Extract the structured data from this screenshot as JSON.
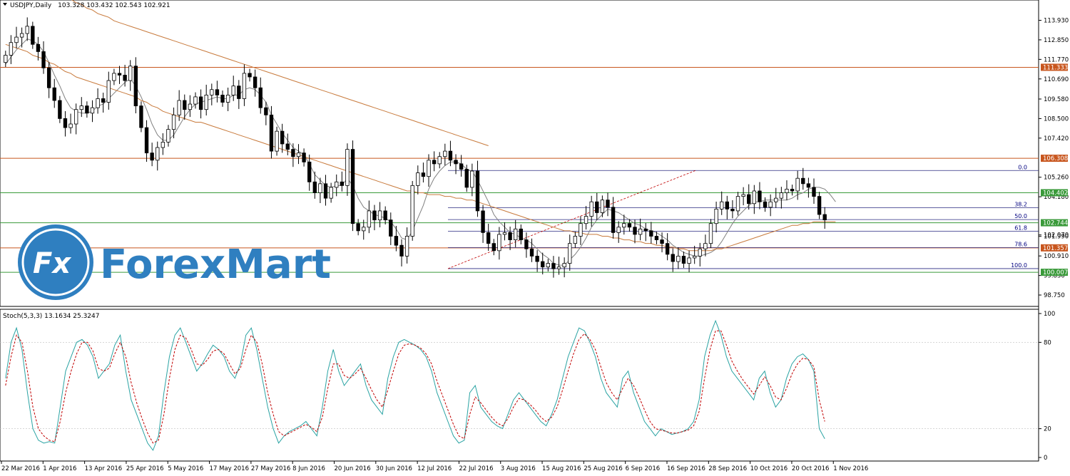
{
  "chart_data": [
    {
      "type": "candlestick",
      "title": "USDJPY,Daily",
      "ohlc_readout": "103.328 103.432 102.543 102.921",
      "ylim": [
        98.2,
        114.5
      ],
      "y_ticks": [
        "113.930",
        "112.850",
        "111.770",
        "110.690",
        "109.580",
        "108.500",
        "107.420",
        "105.260",
        "104.180",
        "102.070",
        "101.990",
        "100.910",
        "99.830",
        "98.750"
      ],
      "x_ticks": [
        "22 Mar 2016",
        "1 Apr 2016",
        "13 Apr 2016",
        "25 Apr 2016",
        "5 May 2016",
        "17 May 2016",
        "27 May 2016",
        "8 Jun 2016",
        "20 Jun 2016",
        "30 Jun 2016",
        "12 Jul 2016",
        "22 Jul 2016",
        "3 Aug 2016",
        "15 Aug 2016",
        "25 Aug 2016",
        "6 Sep 2016",
        "16 Sep 2016",
        "28 Sep 2016",
        "10 Oct 2016",
        "20 Oct 2016",
        "1 Nov 2016"
      ],
      "closes": [
        112.0,
        112.7,
        113.0,
        113.2,
        113.6,
        112.6,
        112.2,
        111.3,
        110.2,
        109.5,
        108.5,
        108.0,
        108.2,
        109.0,
        109.2,
        108.8,
        109.1,
        109.6,
        109.4,
        110.6,
        111.0,
        110.9,
        110.6,
        111.4,
        109.2,
        108.0,
        106.6,
        106.2,
        106.9,
        107.2,
        107.9,
        108.7,
        109.5,
        109.0,
        109.3,
        109.7,
        109.0,
        109.8,
        110.1,
        109.8,
        109.4,
        109.8,
        110.3,
        109.6,
        111.0,
        110.8,
        110.2,
        109.1,
        108.7,
        106.7,
        107.8,
        107.1,
        106.8,
        106.4,
        106.6,
        106.1,
        105.0,
        104.4,
        104.9,
        104.1,
        104.7,
        105.0,
        104.8,
        106.8,
        102.7,
        102.3,
        102.5,
        103.4,
        102.9,
        103.4,
        102.9,
        102.0,
        101.5,
        100.9,
        102.0,
        104.8,
        105.5,
        105.3,
        106.2,
        106.0,
        106.4,
        106.7,
        106.2,
        106.0,
        105.7,
        104.7,
        105.6,
        103.4,
        102.2,
        101.6,
        101.2,
        102.1,
        102.2,
        101.8,
        102.4,
        101.8,
        101.3,
        100.9,
        100.6,
        100.3,
        100.5,
        100.2,
        100.3,
        100.5,
        101.6,
        102.0,
        102.7,
        103.1,
        103.9,
        103.3,
        104.0,
        103.6,
        102.2,
        102.5,
        102.7,
        102.5,
        102.1,
        102.4,
        102.3,
        102.0,
        101.8,
        101.6,
        101.0,
        100.6,
        100.9,
        100.5,
        100.8,
        100.9,
        101.3,
        101.6,
        102.7,
        103.5,
        103.9,
        103.5,
        103.4,
        104.2,
        104.3,
        103.8,
        104.5,
        103.9,
        103.6,
        103.9,
        104.1,
        104.4,
        104.6,
        104.5,
        105.2,
        104.9,
        104.7,
        104.2,
        103.2,
        102.9
      ],
      "moving_averages": [
        {
          "color": "#808080",
          "values": [
            111.5,
            111.9,
            112.3,
            112.6,
            112.9,
            112.8,
            112.6,
            112.2,
            111.6,
            110.9,
            110.3,
            109.6,
            109.1,
            108.9,
            108.8,
            108.8,
            108.9,
            109.2,
            109.3,
            109.6,
            109.9,
            110.2,
            110.5,
            110.7,
            110.3,
            109.7,
            109.0,
            108.2,
            107.6,
            107.3,
            107.3,
            107.6,
            108.1,
            108.6,
            109.0,
            109.3,
            109.4,
            109.5,
            109.6,
            109.7,
            109.6,
            109.6,
            109.8,
            109.8,
            110.1,
            110.2,
            110.1,
            109.8,
            109.4,
            108.7,
            108.2,
            107.7,
            107.3,
            106.9,
            106.7,
            106.5,
            106.0,
            105.4,
            105.1,
            104.8,
            104.7,
            104.8,
            104.8,
            105.2,
            104.8,
            104.1,
            103.6,
            103.4,
            103.2,
            103.1,
            103.0,
            102.8,
            102.4,
            101.9,
            101.8,
            102.3,
            103.0,
            103.7,
            104.6,
            105.2,
            105.6,
            105.9,
            106.1,
            106.1,
            106.0,
            105.7,
            105.6,
            105.1,
            104.5,
            103.9,
            103.2,
            102.8,
            102.5,
            102.2,
            102.1,
            101.9,
            101.8,
            101.6,
            101.3,
            101.0,
            100.8,
            100.5,
            100.4,
            100.4,
            100.7,
            101.0,
            101.4,
            101.9,
            102.5,
            102.9,
            103.2,
            103.5,
            103.4,
            103.3,
            103.1,
            102.9,
            102.7,
            102.6,
            102.4,
            102.3,
            102.2,
            102.0,
            101.8,
            101.5,
            101.3,
            101.1,
            101.0,
            100.9,
            100.9,
            101.0,
            101.1,
            101.3,
            101.7,
            102.2,
            102.7,
            103.1,
            103.4,
            103.7,
            103.9,
            103.9,
            104.0,
            104.0,
            104.0,
            104.0,
            104.0,
            104.1,
            104.3,
            104.4,
            104.6,
            104.7,
            104.7,
            104.6,
            104.3,
            103.9
          ]
        },
        {
          "color": "#c87a3c",
          "values": [
            112.6,
            112.5,
            112.4,
            112.3,
            112.2,
            112.0,
            111.9,
            111.8,
            111.6,
            111.5,
            111.3,
            111.1,
            111.0,
            110.8,
            110.7,
            110.6,
            110.5,
            110.4,
            110.3,
            110.2,
            110.1,
            110.0,
            109.9,
            109.8,
            109.7,
            109.5,
            109.4,
            109.2,
            109.1,
            108.9,
            108.8,
            108.7,
            108.6,
            108.5,
            108.4,
            108.3,
            108.3,
            108.2,
            108.1,
            108.0,
            107.9,
            107.8,
            107.7,
            107.6,
            107.5,
            107.4,
            107.3,
            107.2,
            107.1,
            107.0,
            106.9,
            106.8,
            106.7,
            106.6,
            106.5,
            106.4,
            106.3,
            106.2,
            106.1,
            106.0,
            105.9,
            105.8,
            105.7,
            105.6,
            105.5,
            105.4,
            105.3,
            105.2,
            105.1,
            105.0,
            104.9,
            104.8,
            104.7,
            104.6,
            104.5,
            104.5,
            104.4,
            104.4,
            104.3,
            104.3,
            104.3,
            104.2,
            104.2,
            104.1,
            104.1,
            104.0,
            104.0,
            103.9,
            103.8,
            103.7,
            103.6,
            103.5,
            103.4,
            103.3,
            103.2,
            103.1,
            103.0,
            102.9,
            102.8,
            102.7,
            102.6,
            102.5,
            102.4,
            102.3,
            102.3,
            102.2,
            102.2,
            102.1,
            102.1,
            102.1,
            102.0,
            102.0,
            101.9,
            101.9,
            101.8,
            101.8,
            101.7,
            101.7,
            101.6,
            101.6,
            101.5,
            101.5,
            101.4,
            101.4,
            101.3,
            101.3,
            101.2,
            101.2,
            101.2,
            101.2,
            101.2,
            101.3,
            101.3,
            101.4,
            101.5,
            101.6,
            101.7,
            101.8,
            101.9,
            102.0,
            102.1,
            102.2,
            102.3,
            102.4,
            102.5,
            102.6,
            102.6,
            102.7,
            102.7,
            102.8,
            102.8,
            102.8,
            102.8,
            102.8
          ]
        },
        {
          "color": "#c87a3c",
          "values": [
            116.9,
            116.7,
            116.6,
            116.4,
            116.3,
            116.1,
            116.0,
            115.8,
            115.7,
            115.5,
            115.4,
            115.2,
            115.1,
            114.9,
            114.8,
            114.6,
            114.5,
            114.3,
            114.2,
            114.1,
            113.9,
            113.8,
            113.7,
            113.6,
            113.5,
            113.4,
            113.3,
            113.2,
            113.1,
            113.0,
            112.9,
            112.8,
            112.7,
            112.6,
            112.5,
            112.4,
            112.3,
            112.2,
            112.1,
            112.0,
            111.9,
            111.8,
            111.7,
            111.6,
            111.5,
            111.4,
            111.3,
            111.2,
            111.1,
            111.0,
            110.9,
            110.8,
            110.7,
            110.6,
            110.5,
            110.4,
            110.3,
            110.2,
            110.1,
            110.0,
            109.9,
            109.8,
            109.7,
            109.6,
            109.5,
            109.4,
            109.3,
            109.2,
            109.1,
            109.0,
            108.9,
            108.8,
            108.7,
            108.6,
            108.5,
            108.4,
            108.3,
            108.2,
            108.1,
            108.0,
            107.9,
            107.8,
            107.7,
            107.6,
            107.5,
            107.4,
            107.3,
            107.2,
            107.1,
            107.0
          ]
        }
      ],
      "horizontal_levels": [
        {
          "value": 111.333,
          "label": "111.333",
          "color": "#c8561e"
        },
        {
          "value": 106.308,
          "label": "106.308",
          "color": "#c8561e"
        },
        {
          "value": 104.402,
          "label": "104.402",
          "color": "#3a9a3a"
        },
        {
          "value": 102.744,
          "label": "102.744",
          "color": "#3a9a3a"
        },
        {
          "value": 101.357,
          "label": "101.357",
          "color": "#c8561e"
        },
        {
          "value": 100.007,
          "label": "100.007",
          "color": "#3a9a3a"
        }
      ],
      "fibonacci_levels": [
        {
          "label": "0.0",
          "value": 105.63
        },
        {
          "label": "38.2",
          "value": 103.57
        },
        {
          "label": "50.0",
          "value": 102.92
        },
        {
          "label": "61.8",
          "value": 102.28
        },
        {
          "label": "78.6",
          "value": 101.37
        },
        {
          "label": "100.0",
          "value": 100.21
        }
      ]
    },
    {
      "type": "line",
      "title": "Stoch(5,3,3) 13.1634 25.3247",
      "ylim": [
        0,
        100
      ],
      "y_ticks": [
        "100",
        "80",
        "20",
        "0"
      ],
      "series": [
        {
          "color": "#2aa3a3",
          "values": [
            55,
            80,
            90,
            75,
            45,
            20,
            12,
            10,
            11,
            10,
            35,
            60,
            70,
            80,
            82,
            78,
            70,
            55,
            60,
            65,
            78,
            85,
            60,
            40,
            30,
            20,
            10,
            5,
            15,
            45,
            70,
            85,
            90,
            80,
            70,
            60,
            65,
            72,
            78,
            75,
            70,
            60,
            55,
            65,
            85,
            90,
            75,
            55,
            35,
            20,
            10,
            15,
            18,
            20,
            22,
            25,
            20,
            15,
            35,
            60,
            75,
            60,
            50,
            55,
            60,
            65,
            50,
            40,
            35,
            30,
            55,
            70,
            80,
            82,
            80,
            78,
            75,
            70,
            60,
            45,
            35,
            25,
            15,
            10,
            12,
            45,
            50,
            35,
            30,
            25,
            22,
            20,
            30,
            40,
            45,
            40,
            35,
            30,
            25,
            22,
            30,
            40,
            55,
            70,
            80,
            90,
            88,
            80,
            70,
            55,
            45,
            40,
            35,
            55,
            60,
            45,
            35,
            25,
            20,
            15,
            20,
            18,
            16,
            17,
            18,
            20,
            25,
            40,
            70,
            85,
            95,
            85,
            70,
            60,
            55,
            50,
            45,
            40,
            55,
            60,
            45,
            35,
            40,
            55,
            65,
            70,
            72,
            68,
            60,
            20,
            13
          ]
        },
        {
          "color": "#c00000",
          "values": [
            50,
            70,
            85,
            80,
            60,
            35,
            20,
            15,
            12,
            11,
            25,
            45,
            60,
            72,
            80,
            80,
            74,
            62,
            60,
            62,
            72,
            80,
            70,
            52,
            38,
            27,
            17,
            10,
            12,
            30,
            55,
            75,
            85,
            83,
            75,
            65,
            64,
            68,
            74,
            75,
            72,
            65,
            58,
            62,
            75,
            85,
            80,
            65,
            45,
            30,
            18,
            15,
            17,
            19,
            21,
            23,
            21,
            18,
            28,
            48,
            65,
            65,
            57,
            55,
            58,
            62,
            55,
            47,
            40,
            35,
            47,
            60,
            72,
            78,
            79,
            78,
            76,
            72,
            65,
            53,
            43,
            33,
            23,
            15,
            13,
            30,
            42,
            38,
            33,
            28,
            24,
            22,
            27,
            35,
            41,
            40,
            37,
            33,
            28,
            25,
            28,
            35,
            47,
            60,
            72,
            82,
            86,
            82,
            75,
            63,
            52,
            45,
            40,
            48,
            55,
            50,
            42,
            33,
            25,
            20,
            19,
            18,
            17,
            17,
            18,
            19,
            22,
            32,
            55,
            75,
            88,
            88,
            78,
            67,
            60,
            54,
            49,
            44,
            50,
            56,
            50,
            42,
            40,
            48,
            58,
            65,
            69,
            68,
            63,
            40,
            25
          ]
        }
      ]
    }
  ],
  "watermark": {
    "brand": "ForexMart",
    "logo_text": "Fx"
  }
}
